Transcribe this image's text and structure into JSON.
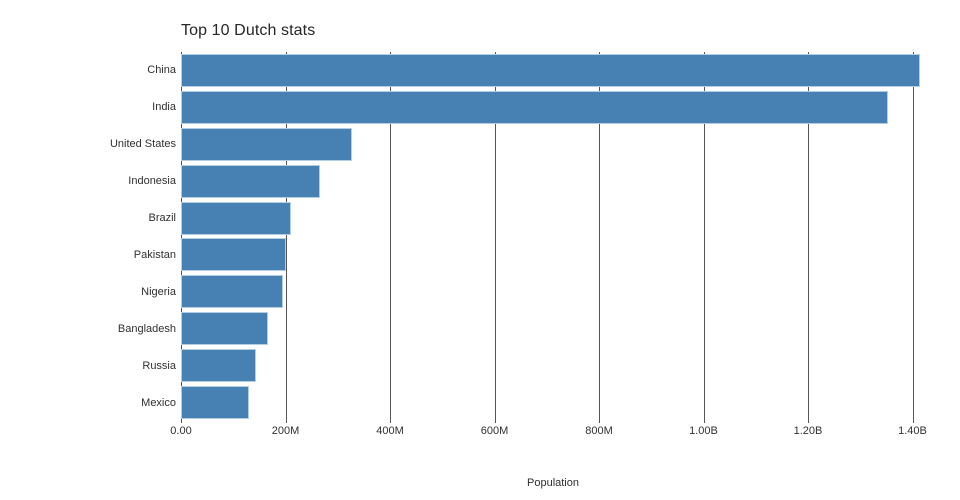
{
  "chart_data": {
    "type": "bar",
    "orientation": "horizontal",
    "title": "Top 10 Dutch stats",
    "xlabel": "Population",
    "ylabel": "",
    "categories": [
      "China",
      "India",
      "United States",
      "Indonesia",
      "Brazil",
      "Pakistan",
      "Nigeria",
      "Bangladesh",
      "Russia",
      "Mexico"
    ],
    "values": [
      1415045928,
      1354051854,
      326766748,
      266794980,
      210867954,
      200813818,
      195875237,
      166368149,
      143964709,
      130759074
    ],
    "xlim": [
      0,
      1424000000
    ],
    "x_ticks": [
      {
        "value": 0,
        "label": "0.00"
      },
      {
        "value": 200000000,
        "label": "200M"
      },
      {
        "value": 400000000,
        "label": "400M"
      },
      {
        "value": 600000000,
        "label": "600M"
      },
      {
        "value": 800000000,
        "label": "800M"
      },
      {
        "value": 1000000000,
        "label": "1.00B"
      },
      {
        "value": 1200000000,
        "label": "1.20B"
      },
      {
        "value": 1400000000,
        "label": "1.40B"
      }
    ],
    "grid": "vertical-gridlines-on",
    "legend": "none",
    "colors": {
      "bar_fill": "#4781b4",
      "bar_border": "#b3cde3",
      "gridline": "#555555",
      "tick_text": "#303030",
      "title_text": "#262626",
      "background": "#ffffff"
    }
  }
}
